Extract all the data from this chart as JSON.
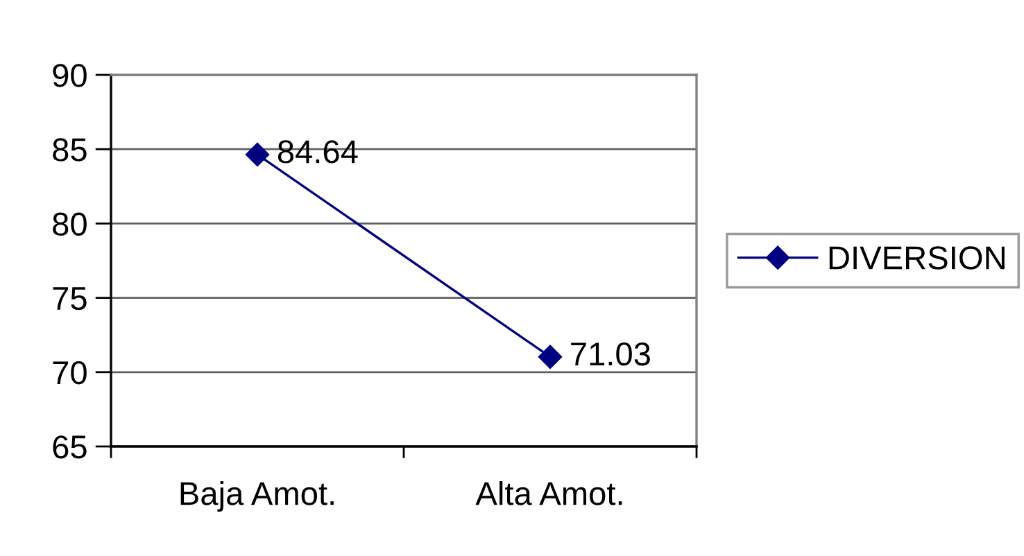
{
  "chart_data": {
    "type": "line",
    "categories": [
      "Baja Amot.",
      "Alta Amot."
    ],
    "series": [
      {
        "name": "DIVERSION",
        "color": "#000080",
        "values": [
          84.64,
          71.03
        ]
      }
    ],
    "ylim": [
      65,
      90
    ],
    "yticks": [
      65,
      70,
      75,
      80,
      85,
      90
    ],
    "grid": "y",
    "legend": "right",
    "marker": "diamond",
    "line_style": "solid",
    "data_labels": true
  }
}
